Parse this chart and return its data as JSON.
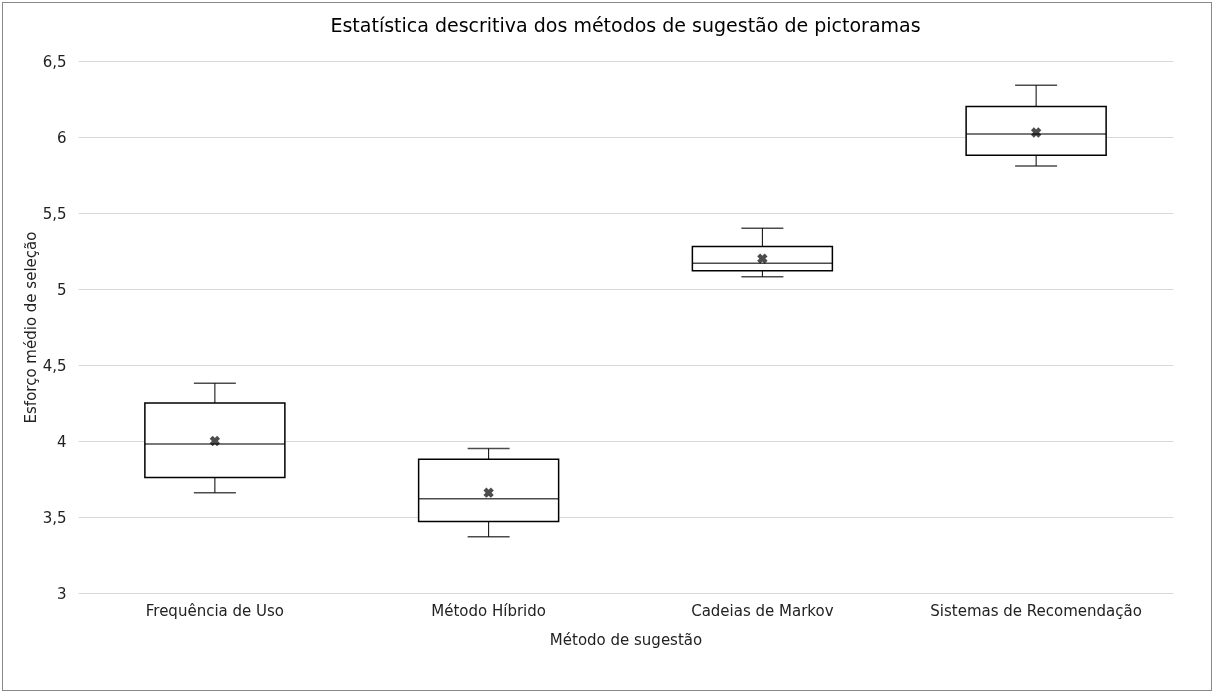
{
  "chart_data": {
    "type": "box",
    "title": "Estatística descritiva dos métodos de sugestão de pictoramas",
    "xlabel": "Método de sugestão",
    "ylabel": "Esforço médio de seleção",
    "categories": [
      "Frequência de Uso",
      "Método Híbrido",
      "Cadeias de Markov",
      "Sistemas de Recomendação"
    ],
    "boxes": [
      {
        "low": 3.66,
        "q1": 3.76,
        "median": 3.98,
        "q3": 4.25,
        "high": 4.38,
        "mean": 4.0
      },
      {
        "low": 3.37,
        "q1": 3.47,
        "median": 3.62,
        "q3": 3.88,
        "high": 3.95,
        "mean": 3.66
      },
      {
        "low": 5.08,
        "q1": 5.12,
        "median": 5.17,
        "q3": 5.28,
        "high": 5.4,
        "mean": 5.2
      },
      {
        "low": 5.81,
        "q1": 5.88,
        "median": 6.02,
        "q3": 6.2,
        "high": 6.34,
        "mean": 6.03
      }
    ],
    "ylim": [
      3,
      6.5
    ],
    "yticks": [
      3,
      {
        "value": 3.5,
        "label": "3,5"
      },
      4,
      {
        "value": 4.5,
        "label": "4,5"
      },
      5,
      {
        "value": 5.5,
        "label": "5,5"
      },
      6,
      {
        "value": 6.5,
        "label": "6,5"
      }
    ],
    "grid": "y",
    "color": "#000000"
  }
}
